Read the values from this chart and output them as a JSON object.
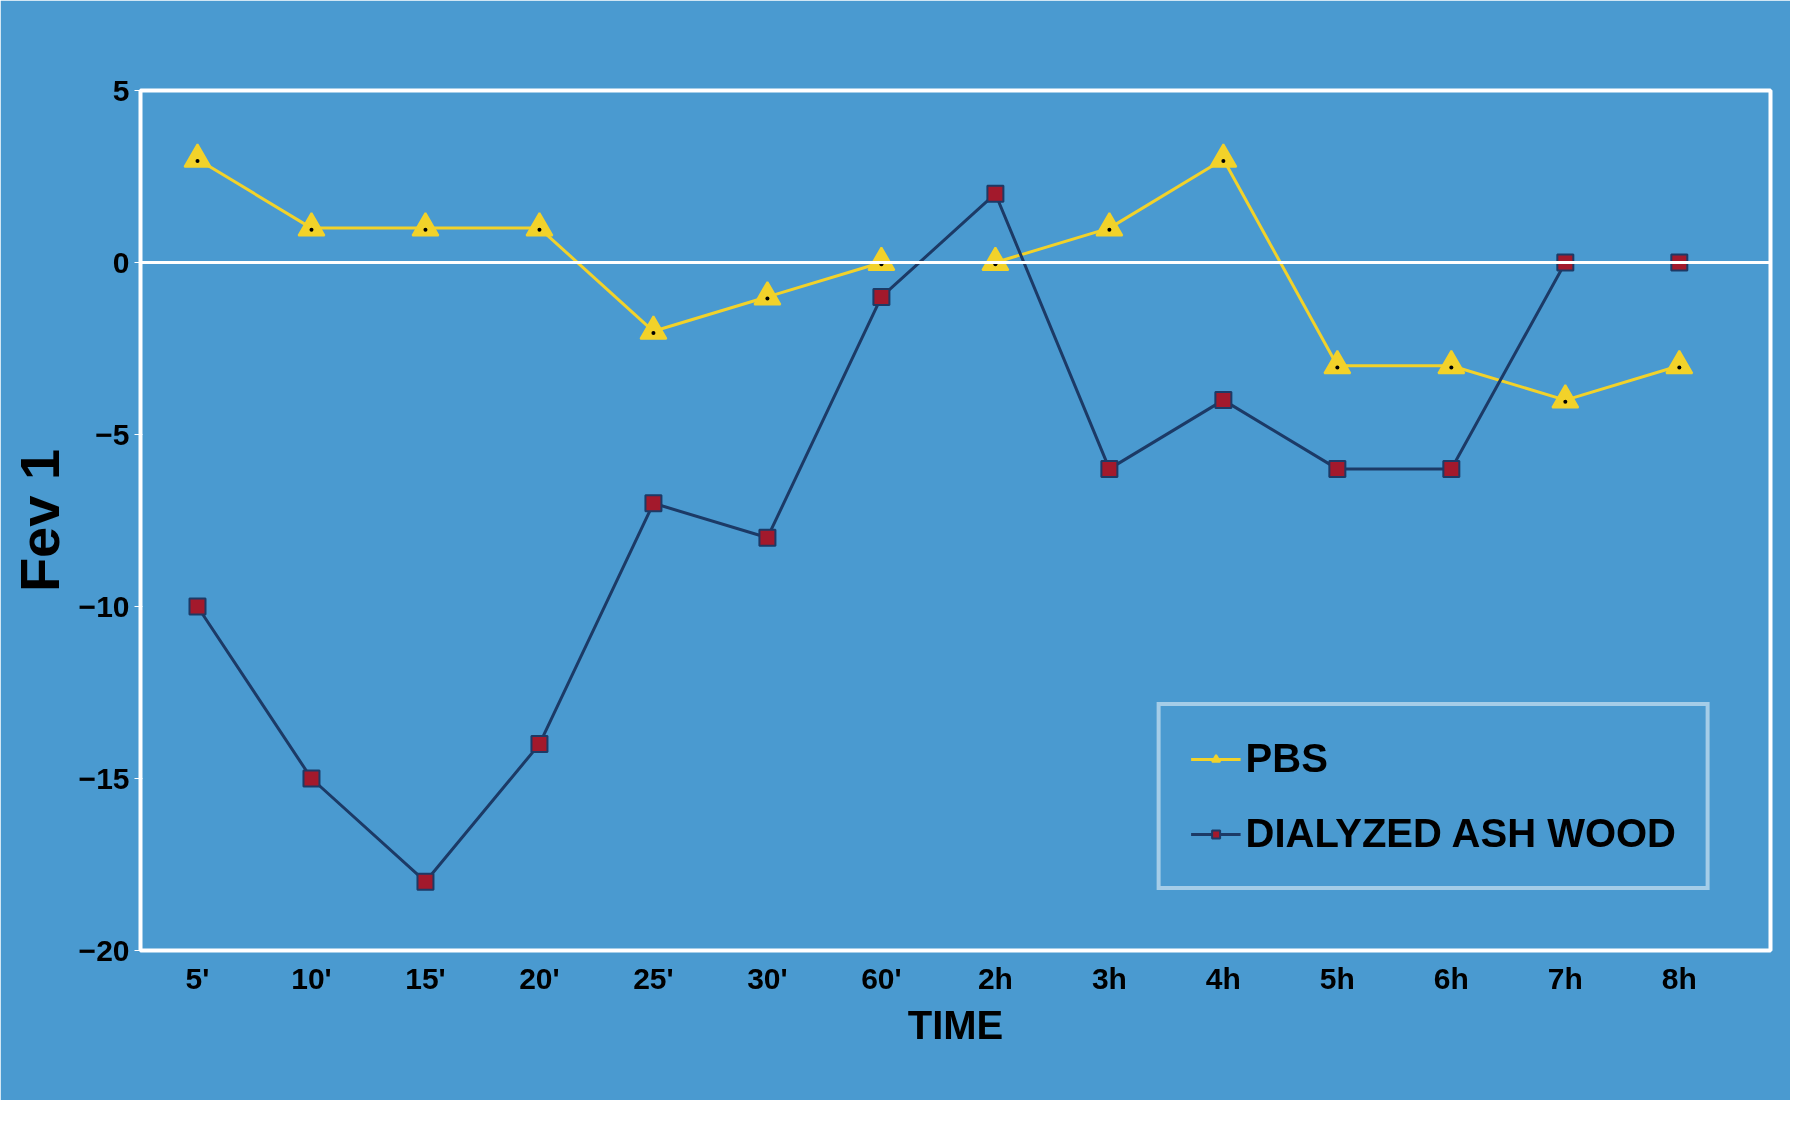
{
  "chart_data": {
    "type": "line",
    "xlabel": "TIME",
    "ylabel": "Fev 1",
    "categories": [
      "5'",
      "10'",
      "15'",
      "20'",
      "25'",
      "30'",
      "60'",
      "2h",
      "3h",
      "4h",
      "5h",
      "6h",
      "7h",
      "8h"
    ],
    "ylim": [
      -20,
      5
    ],
    "yticks": [
      -20,
      -15,
      -10,
      -5,
      0,
      5
    ],
    "grid": false,
    "legend": "bottom right",
    "ref_lines": [
      {
        "axis": "y",
        "value": 0,
        "color": "#ffffff"
      }
    ],
    "series": [
      {
        "name": "PBS",
        "color": "#f2d22a",
        "marker": "triangle",
        "colors": [
          "#f2d22a",
          "#f2d22a",
          "#f2d22a",
          "#f2d22a",
          "#f2d22a",
          "#f2d22a",
          "#f2d22a",
          "#f2d22a",
          "#f2d22a",
          "#f2d22a",
          "#f2d22a",
          "#f2d22a",
          "#f2d22a",
          "#f2d22a"
        ],
        "values": [
          3,
          1,
          1,
          1,
          -2,
          -1,
          0,
          0,
          1,
          3,
          -3,
          -3,
          -4,
          -3
        ]
      },
      {
        "name": "DIALYZED ASH WOOD",
        "color": "#1c3a66",
        "marker": "square",
        "colors": [
          "#a3192c",
          "#a3192c",
          "#a3192c",
          "#a3192c",
          "#a3192c",
          "#a3192c",
          "#a3192c",
          "#a3192c",
          "#a3192c",
          "#a3192c",
          "#a3192c",
          "#a3192c",
          "#a3192c",
          "#a3192c"
        ],
        "values": [
          -10,
          -15,
          -18,
          -14,
          -7,
          -8,
          -1,
          2,
          -6,
          -4,
          -6,
          -6,
          0,
          0
        ]
      }
    ]
  }
}
